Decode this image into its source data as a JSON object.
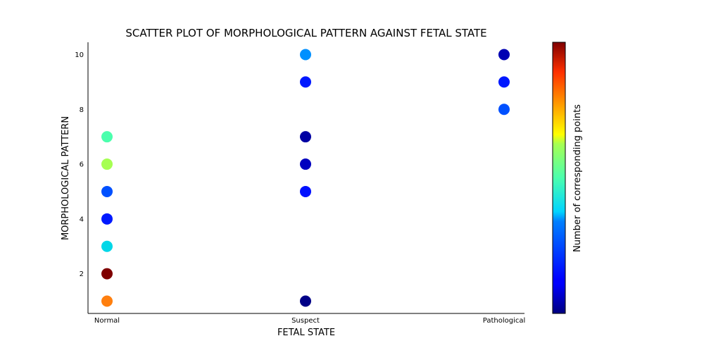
{
  "chart_data": {
    "type": "scatter",
    "title": "SCATTER PLOT OF MORPHOLOGICAL PATTERN AGAINST FETAL STATE",
    "xlabel": "FETAL STATE",
    "ylabel": "MORPHOLOGICAL PATTERN",
    "x_categories": [
      "Normal",
      "Suspect",
      "Pathological"
    ],
    "y_ticks": [
      2,
      4,
      6,
      8,
      10
    ],
    "ylim": [
      0.55,
      10.45
    ],
    "grid": false,
    "colormap": "jet",
    "colorbar_label": "Number of corresponding points",
    "points": [
      {
        "x": "Normal",
        "y": 1,
        "color": "#ff7f0e"
      },
      {
        "x": "Normal",
        "y": 2,
        "color": "#7f0000"
      },
      {
        "x": "Normal",
        "y": 3,
        "color": "#00d7e8"
      },
      {
        "x": "Normal",
        "y": 4,
        "color": "#0019ff"
      },
      {
        "x": "Normal",
        "y": 5,
        "color": "#0050ff"
      },
      {
        "x": "Normal",
        "y": 6,
        "color": "#a6ff52"
      },
      {
        "x": "Normal",
        "y": 7,
        "color": "#4bffad"
      },
      {
        "x": "Suspect",
        "y": 1,
        "color": "#000087"
      },
      {
        "x": "Suspect",
        "y": 5,
        "color": "#0010ff"
      },
      {
        "x": "Suspect",
        "y": 6,
        "color": "#0000bf"
      },
      {
        "x": "Suspect",
        "y": 7,
        "color": "#0000a3"
      },
      {
        "x": "Suspect",
        "y": 9,
        "color": "#0018ff"
      },
      {
        "x": "Suspect",
        "y": 10,
        "color": "#0090ff"
      },
      {
        "x": "Pathological",
        "y": 8,
        "color": "#0050ff"
      },
      {
        "x": "Pathological",
        "y": 9,
        "color": "#0018ff"
      },
      {
        "x": "Pathological",
        "y": 10,
        "color": "#0000b3"
      }
    ]
  }
}
